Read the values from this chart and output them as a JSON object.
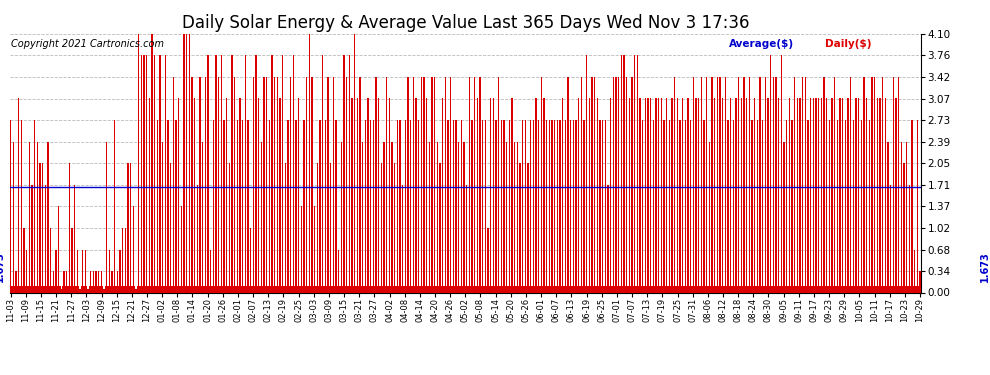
{
  "title": "Daily Solar Energy & Average Value Last 365 Days Wed Nov 3 17:36",
  "copyright": "Copyright 2021 Cartronics.com",
  "average_value": 1.673,
  "average_label": "Average($)",
  "daily_label": "Daily($)",
  "bar_color": "#dd0000",
  "average_line_color": "#0000cc",
  "average_text_color": "#0000cc",
  "daily_text_color": "#dd0000",
  "ylim": [
    0.0,
    4.1
  ],
  "yticks": [
    0.0,
    0.34,
    0.68,
    1.02,
    1.37,
    1.71,
    2.05,
    2.39,
    2.73,
    3.07,
    3.42,
    3.76,
    4.1
  ],
  "background_color": "#ffffff",
  "grid_color": "#bbbbbb",
  "title_fontsize": 12,
  "copyright_fontsize": 7,
  "x_labels": [
    "11-03",
    "11-09",
    "11-15",
    "11-21",
    "11-27",
    "12-03",
    "12-09",
    "12-15",
    "12-21",
    "12-27",
    "01-02",
    "01-08",
    "01-14",
    "01-20",
    "01-26",
    "02-01",
    "02-07",
    "02-13",
    "02-19",
    "02-25",
    "03-03",
    "03-09",
    "03-15",
    "03-21",
    "03-27",
    "04-02",
    "04-08",
    "04-14",
    "04-20",
    "04-26",
    "05-02",
    "05-08",
    "05-14",
    "05-20",
    "05-26",
    "06-01",
    "06-07",
    "06-13",
    "06-19",
    "06-25",
    "07-01",
    "07-07",
    "07-13",
    "07-19",
    "07-25",
    "07-31",
    "08-06",
    "08-12",
    "08-18",
    "08-24",
    "08-30",
    "09-05",
    "09-11",
    "09-17",
    "09-23",
    "09-29",
    "10-05",
    "10-11",
    "10-17",
    "10-23",
    "10-29"
  ],
  "values": [
    2.73,
    0.1,
    2.39,
    0.1,
    0.34,
    0.1,
    3.08,
    0.1,
    2.73,
    0.1,
    1.02,
    0.1,
    0.68,
    0.1,
    2.39,
    0.1,
    1.71,
    0.1,
    2.73,
    0.1,
    2.39,
    0.1,
    2.05,
    0.1,
    2.05,
    0.1,
    1.71,
    0.1,
    2.39,
    0.1,
    1.02,
    0.1,
    0.34,
    0.1,
    0.68,
    0.1,
    1.37,
    0.1,
    0.05,
    0.1,
    0.34,
    0.1,
    0.34,
    0.1,
    2.05,
    0.1,
    1.02,
    0.1,
    1.71,
    0.1,
    0.68,
    0.1,
    0.05,
    0.1,
    0.68,
    0.1,
    0.68,
    0.1,
    0.05,
    0.1,
    0.34,
    0.1,
    0.34,
    0.1,
    0.34,
    0.1,
    0.34,
    0.1,
    0.34,
    0.1,
    0.05,
    0.1,
    2.39,
    0.1,
    0.68,
    0.1,
    0.34,
    0.1,
    2.73,
    0.1,
    0.34,
    0.1,
    0.68,
    0.1,
    1.02,
    0.1,
    1.02,
    0.1,
    2.05,
    0.1,
    2.05,
    0.1,
    1.37,
    0.1,
    0.05,
    0.1,
    4.1,
    0.1,
    3.76,
    0.1,
    3.76,
    0.1,
    3.76,
    0.1,
    3.08,
    0.1,
    4.1,
    0.1,
    3.76,
    0.1,
    2.73,
    0.1,
    3.76,
    0.1,
    2.39,
    0.1,
    3.76,
    0.1,
    2.73,
    0.1,
    2.05,
    0.1,
    3.42,
    0.1,
    2.73,
    0.1,
    3.08,
    0.1,
    1.37,
    0.1,
    4.1,
    0.1,
    4.1,
    0.1,
    4.1,
    0.1,
    3.42,
    0.1,
    3.08,
    0.1,
    1.71,
    0.1,
    3.42,
    0.1,
    2.39,
    0.1,
    3.42,
    0.1,
    3.76,
    0.1,
    0.68,
    0.1,
    2.73,
    0.1,
    3.76,
    0.1,
    3.42,
    0.1,
    3.76,
    0.1,
    2.73,
    0.1,
    3.08,
    0.1,
    2.05,
    0.1,
    3.76,
    0.1,
    3.42,
    0.1,
    2.73,
    0.1,
    3.08,
    0.1,
    2.73,
    0.1,
    3.76,
    0.1,
    2.73,
    0.1,
    1.02,
    0.1,
    3.42,
    0.1,
    3.76,
    0.1,
    3.08,
    0.1,
    2.39,
    0.1,
    3.42,
    0.1,
    3.42,
    0.1,
    2.73,
    0.1,
    3.76,
    0.1,
    3.42,
    0.1,
    3.42,
    0.1,
    3.08,
    0.1,
    3.76,
    0.1,
    2.05,
    0.1,
    2.73,
    0.1,
    3.42,
    0.1,
    3.76,
    0.1,
    2.73,
    0.1,
    3.08,
    0.1,
    1.37,
    0.1,
    2.73,
    0.1,
    3.42,
    0.1,
    4.1,
    0.1,
    3.42,
    0.1,
    1.37,
    0.1,
    2.05,
    0.1,
    2.73,
    0.1,
    3.76,
    0.1,
    2.73,
    0.1,
    3.42,
    0.1,
    2.05,
    0.1,
    3.42,
    0.1,
    2.73,
    0.1,
    0.68,
    0.1,
    2.39,
    0.1,
    3.76,
    0.1,
    3.42,
    0.1,
    3.76,
    0.1,
    3.08,
    0.1,
    4.1,
    0.1,
    3.08,
    0.1,
    3.42,
    0.1,
    2.39,
    0.1,
    2.73,
    0.1,
    3.08,
    0.1,
    2.73,
    0.1,
    2.73,
    0.1,
    3.42,
    0.1,
    3.08,
    0.1,
    2.05,
    0.1,
    2.39,
    0.1,
    3.42,
    0.1,
    3.08,
    0.1,
    2.39,
    0.1,
    2.05,
    0.1,
    2.73,
    0.1,
    2.73,
    0.1,
    1.71,
    0.1,
    2.73,
    0.1,
    3.42,
    0.1,
    2.73,
    0.1,
    3.42,
    0.1,
    3.08,
    0.1,
    2.73,
    0.1,
    3.42,
    0.1,
    3.42,
    0.1,
    3.08,
    0.1,
    2.39,
    0.1,
    3.42,
    0.1,
    3.42,
    0.1,
    2.39,
    0.1,
    2.05,
    0.1,
    3.08,
    0.1,
    3.42,
    0.1,
    2.73,
    0.1,
    3.42,
    0.1,
    2.73,
    0.1,
    2.73,
    0.1,
    2.39,
    0.1,
    2.73,
    0.1,
    2.39,
    0.1,
    1.71,
    0.1,
    3.42,
    0.1,
    2.73,
    0.1,
    3.42,
    0.1,
    3.08,
    0.1,
    3.42,
    0.1,
    2.73,
    0.1,
    2.73,
    0.1,
    1.02,
    0.1,
    3.08,
    0.1,
    3.08,
    0.1,
    2.73,
    0.1,
    3.42,
    0.1,
    2.73,
    0.1,
    2.73,
    0.1,
    2.39,
    0.1,
    2.73,
    0.1,
    3.08,
    0.1,
    2.39,
    0.1,
    2.39,
    0.1,
    2.05,
    0.1,
    2.73,
    0.1,
    2.73,
    0.1,
    2.05,
    0.1,
    2.73,
    0.1,
    2.73,
    0.1,
    3.08,
    0.1,
    2.73,
    0.1,
    3.42,
    0.1,
    3.08,
    0.1,
    2.73,
    0.1,
    2.73,
    0.1,
    2.73,
    0.1,
    2.73,
    0.1,
    2.73,
    0.1,
    2.73,
    0.1,
    3.08,
    0.1,
    2.73,
    0.1,
    3.42,
    0.1,
    2.73,
    0.1,
    2.73,
    0.1,
    2.73,
    0.1,
    3.08,
    0.1,
    3.42,
    0.1,
    2.73,
    0.1,
    3.76,
    0.1,
    3.08,
    0.1,
    3.42,
    0.1,
    3.42,
    0.1,
    3.08,
    0.1,
    2.73,
    0.1,
    2.73,
    0.1,
    2.73,
    0.1,
    1.71,
    0.1,
    3.08,
    0.1,
    3.42,
    0.1,
    3.42,
    0.1,
    3.42,
    0.1,
    3.76,
    0.1,
    3.76,
    0.1,
    3.42,
    0.1,
    3.08,
    0.1,
    3.42,
    0.1,
    3.76,
    0.1,
    3.76,
    0.1,
    3.08,
    0.1,
    2.73,
    0.1,
    3.08,
    0.1,
    3.08,
    0.1,
    3.08,
    0.1,
    2.73,
    0.1,
    3.08,
    0.1,
    3.08,
    0.1,
    3.08,
    0.1,
    2.73,
    0.1,
    3.08,
    0.1,
    2.73,
    0.1,
    3.08,
    0.1,
    3.42,
    0.1,
    3.08,
    0.1,
    2.73,
    0.1,
    3.08,
    0.1,
    2.73,
    0.1,
    3.08,
    0.1,
    2.73,
    0.1,
    3.42,
    0.1,
    3.08,
    0.1,
    3.08,
    0.1,
    3.42,
    0.1,
    2.73,
    0.1,
    3.42,
    0.1,
    2.39,
    0.1,
    3.42,
    0.1,
    3.08,
    0.1,
    3.42,
    0.1,
    3.42,
    0.1,
    3.08,
    0.1,
    3.42,
    0.1,
    2.73,
    0.1,
    3.08,
    0.1,
    2.73,
    0.1,
    3.08,
    0.1,
    3.42,
    0.1,
    3.08,
    0.1,
    3.42,
    0.1,
    3.08,
    0.1,
    3.42,
    0.1,
    2.73,
    0.1,
    3.08,
    0.1,
    2.73,
    0.1,
    3.42,
    0.1,
    2.73,
    0.1,
    3.42,
    0.1,
    3.08,
    0.1,
    3.76,
    0.1,
    3.42,
    0.1,
    3.42,
    0.1,
    3.08,
    0.1,
    3.76,
    0.1,
    2.39,
    0.1,
    2.73,
    0.1,
    3.08,
    0.1,
    2.73,
    0.1,
    3.42,
    0.1,
    3.08,
    0.1,
    3.08,
    0.1,
    3.42,
    0.1,
    3.42,
    0.1,
    2.73,
    0.1,
    3.08,
    0.1,
    3.08,
    0.1,
    3.08,
    0.1,
    3.08,
    0.1,
    3.08,
    0.1,
    3.42,
    0.1,
    3.08,
    0.1,
    2.73,
    0.1,
    3.08,
    0.1,
    3.42,
    0.1,
    2.73,
    0.1,
    3.08,
    0.1,
    3.08,
    0.1,
    2.73,
    0.1,
    3.08,
    0.1,
    3.42,
    0.1,
    2.73,
    0.1,
    3.08,
    0.1,
    3.08,
    0.1,
    2.73,
    0.1,
    3.42,
    0.1,
    3.08,
    0.1,
    2.73,
    0.1,
    3.42,
    0.1,
    3.42,
    0.1,
    3.08,
    0.1,
    3.08,
    0.1,
    3.42,
    0.1,
    3.08,
    0.1,
    2.39,
    0.1,
    1.71,
    0.1,
    3.42,
    0.1,
    3.08,
    0.1,
    3.42,
    0.1,
    2.39,
    0.1,
    2.05,
    0.1,
    2.39,
    0.1,
    1.71,
    0.1,
    2.73,
    0.1,
    0.68,
    0.1,
    2.73,
    0.1,
    0.34
  ]
}
